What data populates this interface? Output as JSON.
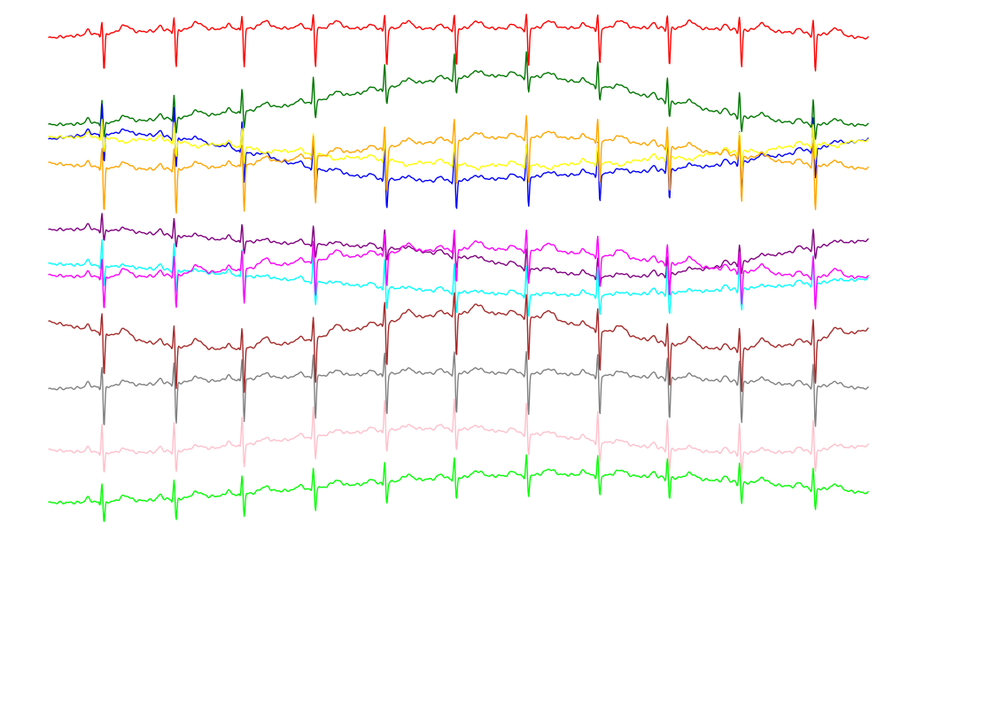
{
  "chart_data": {
    "type": "line",
    "title": "",
    "xlabel": "",
    "ylabel": "",
    "axes_visible": false,
    "grid": false,
    "legend": "none",
    "x_range": [
      0,
      10
    ],
    "y_range": [
      -14.5,
      0.7
    ],
    "beats_x": [
      0.65,
      1.53,
      2.36,
      3.23,
      4.1,
      4.95,
      5.83,
      6.7,
      7.55,
      8.43,
      9.33
    ],
    "series": [
      {
        "color": "#ff0000",
        "offset": 0.0,
        "wander": [
          {
            "amp": 0.42,
            "cycles": 0.5,
            "phase": 0.0
          },
          {
            "amp": 0.1,
            "cycles": 1.2,
            "phase": 1.0
          }
        ],
        "r": 0.35,
        "s": -0.95,
        "t": 0.18
      },
      {
        "color": "#007700",
        "offset": -1.55,
        "wander": [
          {
            "amp": 0.6,
            "cycles": 1.0,
            "phase": 4.5
          },
          {
            "amp": 0.1,
            "cycles": 2.0,
            "phase": 0.5
          }
        ],
        "r": 0.6,
        "s": -0.4,
        "t": 0.14
      },
      {
        "color": "#0000ff",
        "offset": -3.0,
        "wander": [
          {
            "amp": 0.55,
            "cycles": 1.0,
            "phase": 1.2
          },
          {
            "amp": 0.15,
            "cycles": 2.0,
            "phase": 0.2
          }
        ],
        "r": 0.8,
        "s": -0.75,
        "t": 0.1
      },
      {
        "color": "#ffff00",
        "offset": -2.75,
        "wander": [
          {
            "amp": 0.35,
            "cycles": 0.9,
            "phase": 1.5
          }
        ],
        "r": 0.5,
        "s": -0.4,
        "t": -0.1
      },
      {
        "color": "#ffa500",
        "offset": -2.8,
        "wander": [
          {
            "amp": 0.4,
            "cycles": 1.1,
            "phase": 3.8
          }
        ],
        "r": 0.55,
        "s": -1.15,
        "t": 0.15
      },
      {
        "color": "#800080",
        "offset": -5.25,
        "wander": [
          {
            "amp": 0.5,
            "cycles": 0.9,
            "phase": 0.9
          },
          {
            "amp": 0.15,
            "cycles": 2.0,
            "phase": 2.0
          }
        ],
        "r": 0.45,
        "s": -0.3,
        "t": 0.08
      },
      {
        "color": "#00ffff",
        "offset": -5.95,
        "wander": [
          {
            "amp": 0.4,
            "cycles": 0.7,
            "phase": 1.9
          }
        ],
        "r": 0.7,
        "s": -0.55,
        "t": 0.05
      },
      {
        "color": "#ff00ff",
        "offset": -5.55,
        "wander": [
          {
            "amp": 0.35,
            "cycles": 1.1,
            "phase": 4.2
          }
        ],
        "r": 0.5,
        "s": -0.85,
        "t": 0.2
      },
      {
        "color": "#a52a2a",
        "offset": -7.25,
        "wander": [
          {
            "amp": 0.45,
            "cycles": 1.6,
            "phase": 2.6
          }
        ],
        "r": 0.55,
        "s": -1.1,
        "t": 0.22
      },
      {
        "color": "#808080",
        "offset": -8.55,
        "wander": [
          {
            "amp": 0.25,
            "cycles": 0.7,
            "phase": 5.6
          }
        ],
        "r": 0.55,
        "s": -1.05,
        "t": 0.12
      },
      {
        "color": "#ffc0cb",
        "offset": -10.0,
        "wander": [
          {
            "amp": 0.3,
            "cycles": 1.3,
            "phase": 4.0
          }
        ],
        "r": 0.75,
        "s": -0.55,
        "t": 0.1
      },
      {
        "color": "#00ff00",
        "offset": -11.2,
        "wander": [
          {
            "amp": 0.35,
            "cycles": 0.8,
            "phase": 4.7
          }
        ],
        "r": 0.5,
        "s": -0.55,
        "t": 0.14
      }
    ]
  }
}
